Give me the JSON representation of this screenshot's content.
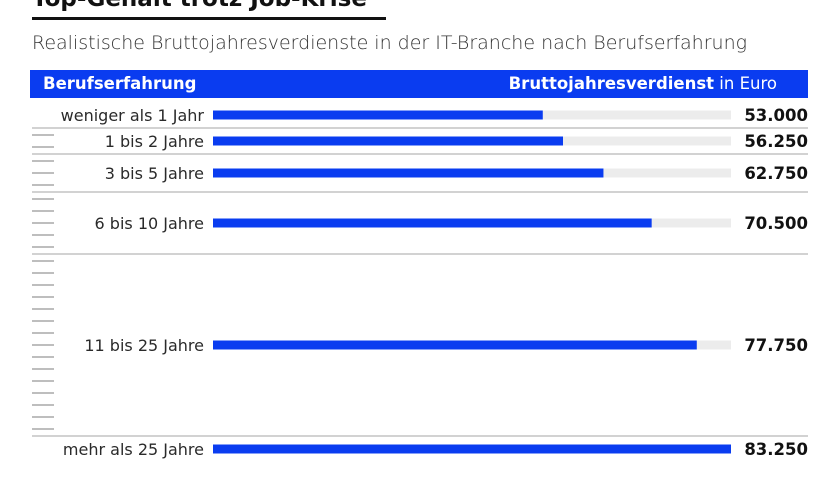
{
  "title": "Top-Gehalt trotz Job-Krise",
  "subtitle": "Realistische Bruttojahresverdienste in der IT-Branche nach Berufserfahrung",
  "header": {
    "left": "Berufserfahrung",
    "right_bold": "Bruttojahresverdienst",
    "right_unit": " in Euro"
  },
  "colors": {
    "accent": "#0a3cf0",
    "track": "#ececec",
    "rule": "#c4c4c4"
  },
  "chart_data": {
    "type": "bar",
    "orientation": "horizontal",
    "categories": [
      "weniger als 1 Jahr",
      "1 bis 2 Jahre",
      "3 bis 5 Jahre",
      "6 bis 10 Jahre",
      "11 bis 25 Jahre",
      "mehr als 25 Jahre"
    ],
    "values": [
      53000,
      56250,
      62750,
      70500,
      77750,
      83250
    ],
    "value_labels": [
      "53.000",
      "56.250",
      "62.750",
      "70.500",
      "77.750",
      "83.250"
    ],
    "experience_years": [
      [
        0,
        1
      ],
      [
        1,
        2
      ],
      [
        3,
        5
      ],
      [
        6,
        10
      ],
      [
        11,
        25
      ],
      [
        25,
        25
      ]
    ],
    "xlim": [
      0,
      83250
    ],
    "xlabel": "Bruttojahresverdienst in Euro",
    "ylabel": "Berufserfahrung"
  }
}
